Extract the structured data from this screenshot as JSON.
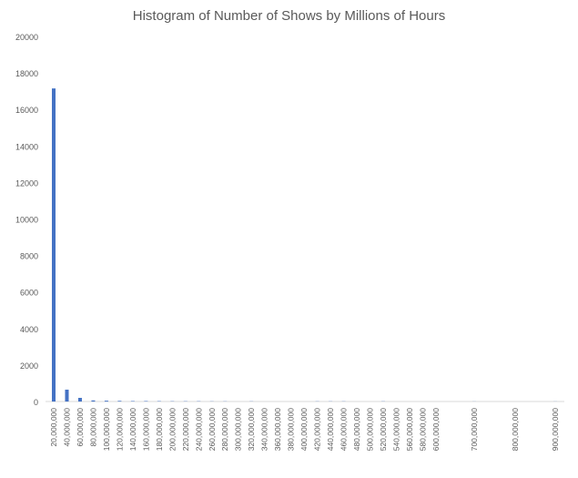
{
  "chart_data": {
    "type": "bar",
    "title": "Histogram of Number of Shows by Millions of Hours",
    "xlabel": "",
    "ylabel": "",
    "ylim": [
      0,
      20000
    ],
    "yticks": [
      0,
      2000,
      4000,
      6000,
      8000,
      10000,
      12000,
      14000,
      16000,
      18000,
      20000
    ],
    "grid": false,
    "bar_color": "#4472c4",
    "categories": [
      "20,000,000",
      "40,000,000",
      "60,000,000",
      "80,000,000",
      "100,000,000",
      "120,000,000",
      "140,000,000",
      "160,000,000",
      "180,000,000",
      "200,000,000",
      "220,000,000",
      "240,000,000",
      "260,000,000",
      "280,000,000",
      "300,000,000",
      "320,000,000",
      "340,000,000",
      "360,000,000",
      "380,000,000",
      "400,000,000",
      "420,000,000",
      "440,000,000",
      "460,000,000",
      "480,000,000",
      "500,000,000",
      "520,000,000",
      "540,000,000",
      "560,000,000",
      "580,000,000",
      "600,000,000",
      "700,000,000",
      "800,000,000",
      "900,000,000"
    ],
    "values": [
      17150,
      650,
      200,
      60,
      45,
      35,
      25,
      25,
      20,
      15,
      15,
      15,
      10,
      10,
      0,
      10,
      0,
      0,
      0,
      0,
      10,
      10,
      10,
      0,
      0,
      10,
      0,
      0,
      0,
      0,
      5,
      0,
      5
    ]
  }
}
